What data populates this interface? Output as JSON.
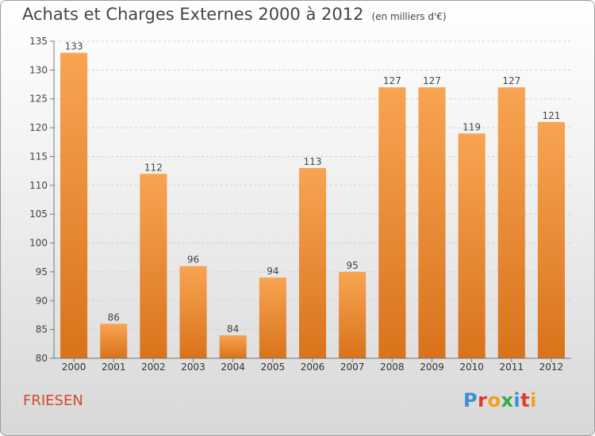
{
  "title": "Achats et Charges Externes 2000 à 2012",
  "unit_note": "(en milliers d'€)",
  "location": "FRIESEN",
  "brand": "Proxiti",
  "brand_colors": [
    "#3a8fd6",
    "#e0392d",
    "#f0a21b",
    "#34a853",
    "#3a8fd6",
    "#e0392d",
    "#f0a21b"
  ],
  "colors": {
    "bar_top": "#f8a452",
    "bar_bottom": "#d9731b",
    "axis": "#777777",
    "grid": "#d0d0d0"
  },
  "chart_data": {
    "type": "bar",
    "categories": [
      "2000",
      "2001",
      "2002",
      "2003",
      "2004",
      "2005",
      "2006",
      "2007",
      "2008",
      "2009",
      "2010",
      "2011",
      "2012"
    ],
    "values": [
      133,
      86,
      112,
      96,
      84,
      94,
      113,
      95,
      127,
      127,
      119,
      127,
      121
    ],
    "ylim": [
      80,
      135
    ],
    "yticks": [
      80,
      85,
      90,
      95,
      100,
      105,
      110,
      115,
      120,
      125,
      130,
      135
    ],
    "grid": true,
    "legend": "none"
  }
}
